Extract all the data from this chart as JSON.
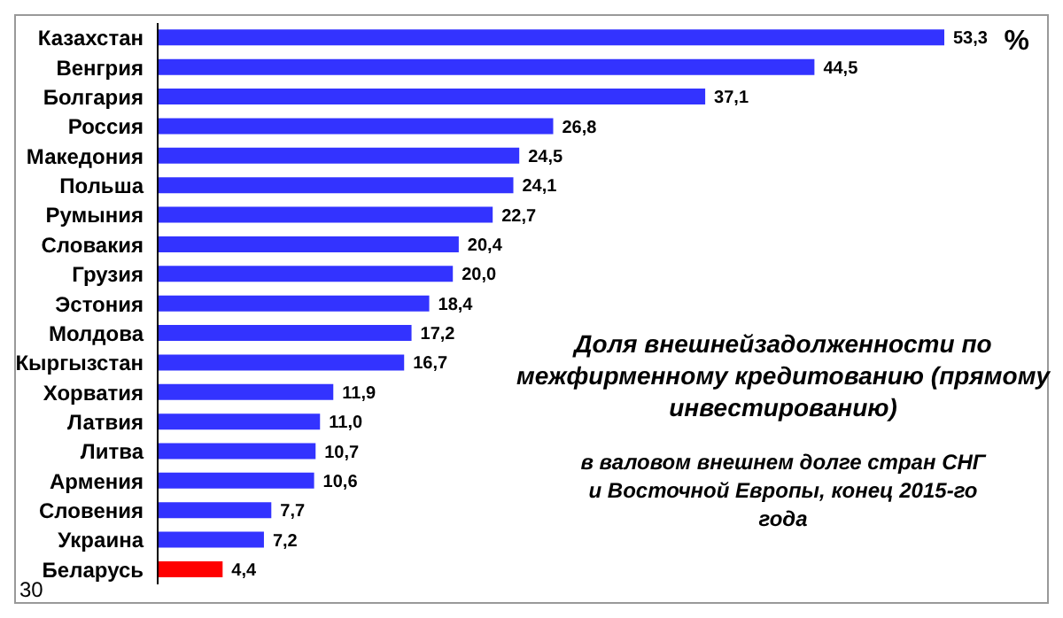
{
  "chart_data": {
    "type": "bar",
    "orientation": "horizontal",
    "title": "Доля внешнейзадолженности по межфирменному кредитованию (прямому инвестированию)",
    "subtitle": "в валовом внешнем  долге стран СНГ и Восточной  Европы, конец 2015-го года",
    "xlabel": "%",
    "annotations": [
      "30"
    ],
    "categories": [
      "Казахстан",
      "Венгрия",
      "Болгария",
      "Россия",
      "Македония",
      "Польша",
      "Румыния",
      "Словакия",
      "Грузия",
      "Эстония",
      "Молдова",
      "Кыргызстан",
      "Хорватия",
      "Латвия",
      "Литва",
      "Армения",
      "Словения",
      "Украина",
      "Беларусь"
    ],
    "values": [
      53.3,
      44.5,
      37.1,
      26.8,
      24.5,
      24.1,
      22.7,
      20.4,
      20.0,
      18.4,
      17.2,
      16.7,
      11.9,
      11.0,
      10.7,
      10.6,
      7.7,
      7.2,
      4.4
    ],
    "value_labels": [
      "53,3",
      "44,5",
      "37,1",
      "26,8",
      "24,5",
      "24,1",
      "22,7",
      "20,4",
      "20,0",
      "18,4",
      "17,2",
      "16,7",
      "11,9",
      "11,0",
      "10,7",
      "10,6",
      "7,7",
      "7,2",
      "4,4"
    ],
    "colors": [
      "#3333ff",
      "#3333ff",
      "#3333ff",
      "#3333ff",
      "#3333ff",
      "#3333ff",
      "#3333ff",
      "#3333ff",
      "#3333ff",
      "#3333ff",
      "#3333ff",
      "#3333ff",
      "#3333ff",
      "#3333ff",
      "#3333ff",
      "#3333ff",
      "#3333ff",
      "#3333ff",
      "#ff0000"
    ],
    "grid": false,
    "legend": false
  }
}
